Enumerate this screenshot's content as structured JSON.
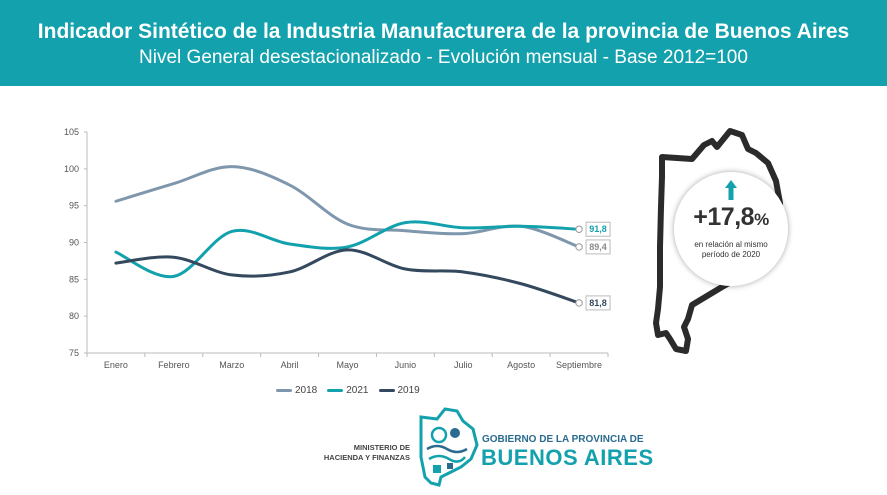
{
  "header": {
    "title": "Indicador Sintético de la Industria Manufacturera de la provincia de Buenos Aires",
    "subtitle": "Nivel General desestacionalizado - Evolución mensual - Base 2012=100"
  },
  "colors": {
    "header_bg": "#13a2ad",
    "s2018": "#7f97ac",
    "s2021": "#13a2ad",
    "s2019": "#34495e"
  },
  "chart_data": {
    "type": "line",
    "categories": [
      "Enero",
      "Febrero",
      "Marzo",
      "Abril",
      "Mayo",
      "Junio",
      "Julio",
      "Agosto",
      "Septiembre"
    ],
    "ylim": [
      75,
      105
    ],
    "yticks": [
      75,
      80,
      85,
      90,
      95,
      100,
      105
    ],
    "grid": false,
    "legend_position": "bottom",
    "series": [
      {
        "name": "2018",
        "color": "#7f97ac",
        "values": [
          95.6,
          98.0,
          100.3,
          97.8,
          92.5,
          91.6,
          91.2,
          92.2,
          89.4
        ],
        "end_label": "89,4"
      },
      {
        "name": "2021",
        "color": "#13a2ad",
        "values": [
          88.7,
          85.4,
          91.5,
          89.8,
          89.4,
          92.7,
          92.0,
          92.2,
          91.8
        ],
        "end_label": "91,8"
      },
      {
        "name": "2019",
        "color": "#34495e",
        "values": [
          87.2,
          88.0,
          85.6,
          86.0,
          89.0,
          86.4,
          86.0,
          84.4,
          81.8
        ],
        "end_label": "81,8"
      }
    ]
  },
  "badge": {
    "value": "+17,8",
    "unit": "%",
    "caption_line1": "en relación al mismo",
    "caption_line2": "período de 2020",
    "icon": "arrow-up-icon"
  },
  "footer": {
    "ministry_line1": "MINISTERIO DE",
    "ministry_line2": "HACIENDA Y FINANZAS",
    "gov_small": "GOBIERNO DE LA PROVINCIA DE",
    "gov_big": "BUENOS AIRES"
  }
}
